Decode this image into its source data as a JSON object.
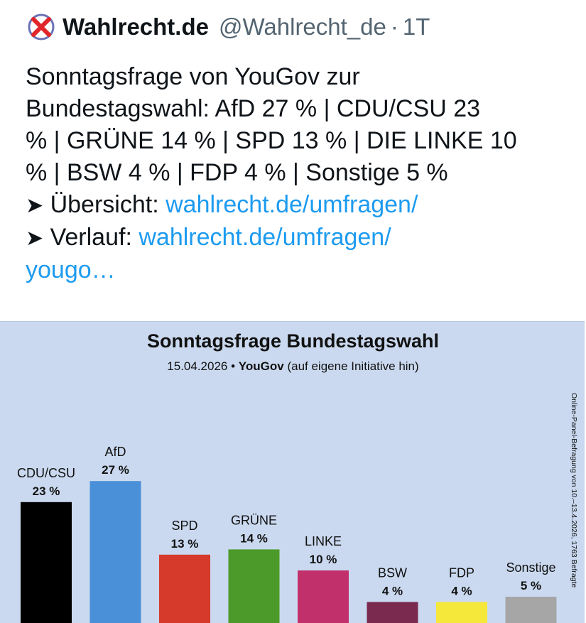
{
  "tweet": {
    "author_name": "Wahlrecht.de",
    "handle": "@Wahlrecht_de",
    "separator": "·",
    "time": "1T",
    "text_lines": [
      "Sonntagsfrage von YouGov zur",
      "Bundestagswahl: AfD 27 % | CDU/CSU 23",
      "% | GRÜNE 14 % | SPD 13 % | DIE LINKE 10",
      "% | BSW 4 % | FDP 4 % | Sonstige 5 %"
    ],
    "arrow": "➤",
    "overview_label": "Übersicht:",
    "overview_link": "wahlrecht.de/umfragen/",
    "history_label": "Verlauf:",
    "history_link_line1": "wahlrecht.de/umfragen/",
    "history_link_line2": "yougo…"
  },
  "chart_data": {
    "type": "bar",
    "title": "Sonntagsfrage Bundestagswahl",
    "subtitle_date": "15.04.2026 •",
    "subtitle_source": "YouGov",
    "subtitle_note": "(auf eigene Initiative hin)",
    "side_note": "Online-Panel-Befragung von 10.–13.4.2026, 1763 Befragte",
    "categories": [
      "CDU/CSU",
      "AfD",
      "SPD",
      "GRÜNE",
      "LINKE",
      "BSW",
      "FDP",
      "Sonstige"
    ],
    "values": [
      23,
      27,
      13,
      14,
      10,
      4,
      4,
      5
    ],
    "value_labels": [
      "23 %",
      "27 %",
      "13 %",
      "14 %",
      "10 %",
      "4 %",
      "4 %",
      "5 %"
    ],
    "colors": [
      "#000000",
      "#4a90d9",
      "#d53a2b",
      "#4c9a2a",
      "#c2306c",
      "#7a2a4e",
      "#f5e83a",
      "#a6a6a6"
    ],
    "xlabel": "",
    "ylabel": "",
    "ylim": [
      0,
      35
    ]
  }
}
